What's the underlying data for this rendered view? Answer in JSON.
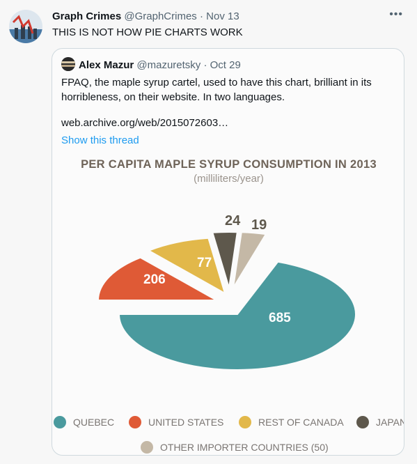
{
  "tweet": {
    "display_name": "Graph Crimes",
    "handle": "@GraphCrimes",
    "date": "Nov 13",
    "text": "THIS IS NOT HOW PIE CHARTS WORK",
    "more_icon": "more-horizontal-icon"
  },
  "quote": {
    "display_name": "Alex Mazur",
    "handle": "@mazuretsky",
    "date": "Oct 29",
    "text": "FPAQ, the maple syrup cartel, used to have this chart, brilliant in its horribleness, on their website. In two languages.",
    "link": "web.archive.org/web/2015072603…",
    "show_thread": "Show this thread"
  },
  "chart_data": {
    "type": "pie",
    "title": "PER CAPITA MAPLE SYRUP CONSUMPTION IN 2013",
    "subtitle": "(milliliters/year)",
    "slices": [
      {
        "name": "QUEBEC",
        "value": 685,
        "label": "685",
        "color": "#4a9a9e"
      },
      {
        "name": "UNITED STATES",
        "value": 206,
        "label": "206",
        "color": "#df5a36"
      },
      {
        "name": "REST OF CANADA",
        "value": 77,
        "label": "77",
        "color": "#e2b84a"
      },
      {
        "name": "JAPAN",
        "value": 24,
        "label": "24",
        "color": "#5e584c"
      },
      {
        "name": "OTHER IMPORTER COUNTRIES (50)",
        "value": 19,
        "label": "19",
        "color": "#c4b8a6"
      }
    ],
    "legend": {
      "placement": "bottom",
      "items": [
        "QUEBEC",
        "UNITED STATES",
        "REST OF CANADA",
        "JAPAN",
        "OTHER IMPORTER COUNTRIES (50)"
      ]
    }
  }
}
